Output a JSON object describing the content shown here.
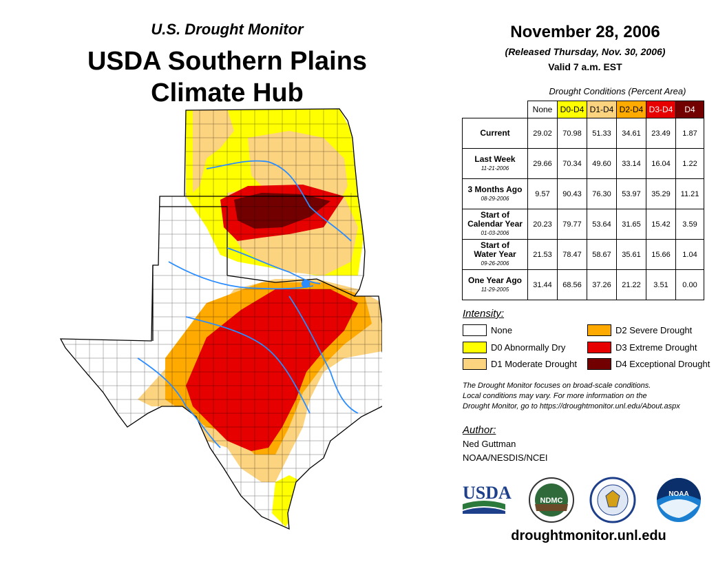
{
  "header": {
    "subtitle": "U.S. Drought Monitor",
    "title_line1": "USDA Southern Plains",
    "title_line2": "Climate Hub"
  },
  "date": {
    "main": "November 28, 2006",
    "released": "(Released Thursday, Nov. 30, 2006)",
    "valid": "Valid 7 a.m. EST"
  },
  "conditions_table": {
    "caption": "Drought Conditions (Percent Area)",
    "columns": [
      {
        "label": "None",
        "color": "#ffffff",
        "text_color": "#000000"
      },
      {
        "label": "D0-D4",
        "color": "#ffff00",
        "text_color": "#000000"
      },
      {
        "label": "D1-D4",
        "color": "#fcd37f",
        "text_color": "#000000"
      },
      {
        "label": "D2-D4",
        "color": "#ffaa00",
        "text_color": "#000000"
      },
      {
        "label": "D3-D4",
        "color": "#e60000",
        "text_color": "#ffffff"
      },
      {
        "label": "D4",
        "color": "#730000",
        "text_color": "#ffffff"
      }
    ],
    "rows": [
      {
        "label": "Current",
        "label2": "",
        "date": "",
        "values": [
          "29.02",
          "70.98",
          "51.33",
          "34.61",
          "23.49",
          "1.87"
        ]
      },
      {
        "label": "Last Week",
        "label2": "",
        "date": "11-21-2006",
        "values": [
          "29.66",
          "70.34",
          "49.60",
          "33.14",
          "16.04",
          "1.22"
        ]
      },
      {
        "label": "3 Months Ago",
        "label2": "",
        "date": "08-29-2006",
        "values": [
          "9.57",
          "90.43",
          "76.30",
          "53.97",
          "35.29",
          "11.21"
        ]
      },
      {
        "label": "Start of",
        "label2": "Calendar Year",
        "date": "01-03-2006",
        "values": [
          "20.23",
          "79.77",
          "53.64",
          "31.65",
          "15.42",
          "3.59"
        ]
      },
      {
        "label": "Start of",
        "label2": "Water Year",
        "date": "09-26-2006",
        "values": [
          "21.53",
          "78.47",
          "58.67",
          "35.61",
          "15.66",
          "1.04"
        ]
      },
      {
        "label": "One Year Ago",
        "label2": "",
        "date": "11-29-2005",
        "values": [
          "31.44",
          "68.56",
          "37.26",
          "21.22",
          "3.51",
          "0.00"
        ]
      }
    ]
  },
  "legend": {
    "title": "Intensity:",
    "items": [
      {
        "label": "None",
        "color": "#ffffff"
      },
      {
        "label": "D0 Abnormally Dry",
        "color": "#ffff00"
      },
      {
        "label": "D1 Moderate Drought",
        "color": "#fcd37f"
      },
      {
        "label": "D2 Severe Drought",
        "color": "#ffaa00"
      },
      {
        "label": "D3 Extreme Drought",
        "color": "#e60000"
      },
      {
        "label": "D4 Exceptional Drought",
        "color": "#730000"
      }
    ]
  },
  "disclaimer": {
    "line1": "The Drought Monitor focuses on broad-scale conditions.",
    "line2": "Local conditions may vary. For more information on the",
    "line3": "Drought Monitor, go to https://droughtmonitor.unl.edu/About.aspx"
  },
  "author": {
    "title": "Author:",
    "name": "Ned Guttman",
    "org": "NOAA/NESDIS/NCEI"
  },
  "logos": {
    "usda": "USDA",
    "ndmc": "NDMC",
    "noaa": "NOAA"
  },
  "website": "droughtmonitor.unl.edu"
}
